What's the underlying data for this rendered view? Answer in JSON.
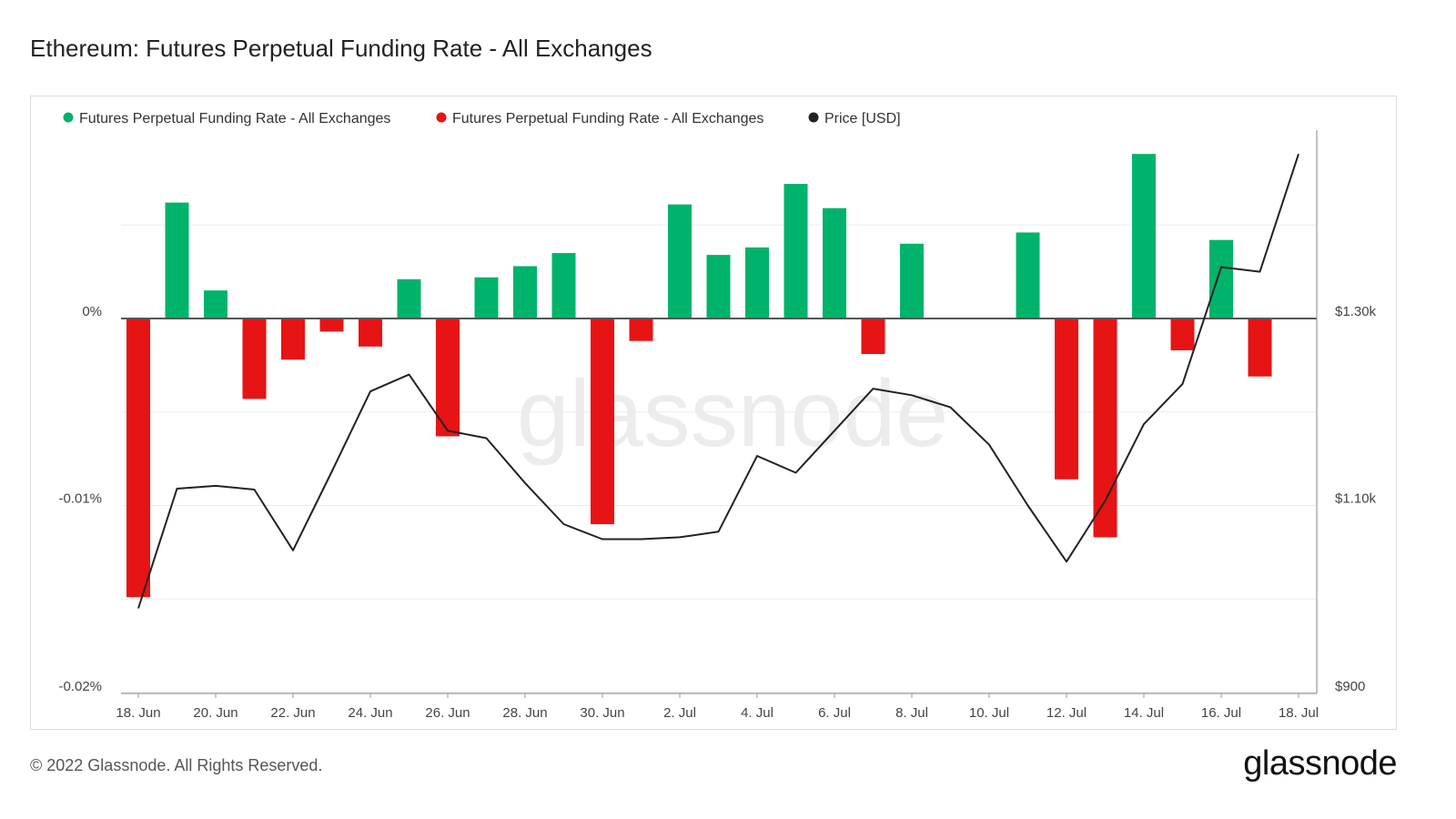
{
  "page": {
    "title": "Ethereum: Futures Perpetual Funding Rate - All Exchanges",
    "copyright": "© 2022 Glassnode. All Rights Reserved.",
    "logo": "glassnode",
    "watermark": "glassnode"
  },
  "chart_data": {
    "type": "bar",
    "legend": [
      {
        "label": "Futures Perpetual Funding Rate - All Exchanges",
        "color": "#00b36b"
      },
      {
        "label": "Futures Perpetual Funding Rate - All Exchanges",
        "color": "#e61414"
      },
      {
        "label": "Price [USD]",
        "color": "#222222"
      }
    ],
    "legend_position": "top-left",
    "x_tick_labels": [
      "18. Jun",
      "20. Jun",
      "22. Jun",
      "24. Jun",
      "26. Jun",
      "28. Jun",
      "30. Jun",
      "2. Jul",
      "4. Jul",
      "6. Jul",
      "8. Jul",
      "10. Jul",
      "12. Jul",
      "14. Jul",
      "16. Jul",
      "18. Jul"
    ],
    "left_axis": {
      "ticks": [
        {
          "value": 0,
          "label": "0%"
        },
        {
          "value": -0.01,
          "label": "-0.01%"
        },
        {
          "value": -0.02,
          "label": "-0.02%"
        }
      ],
      "range": [
        -0.02,
        0.01
      ]
    },
    "right_axis": {
      "ticks": [
        {
          "value": 1300,
          "label": "$1.30k"
        },
        {
          "value": 1100,
          "label": "$1.10k"
        },
        {
          "value": 900,
          "label": "$900"
        }
      ],
      "range": [
        900,
        1500
      ]
    },
    "grid": true,
    "dates": [
      "18. Jun",
      "19. Jun",
      "20. Jun",
      "21. Jun",
      "22. Jun",
      "23. Jun",
      "24. Jun",
      "25. Jun",
      "26. Jun",
      "27. Jun",
      "28. Jun",
      "29. Jun",
      "30. Jun",
      "1. Jul",
      "2. Jul",
      "3. Jul",
      "4. Jul",
      "5. Jul",
      "6. Jul",
      "7. Jul",
      "8. Jul",
      "9. Jul",
      "10. Jul",
      "11. Jul",
      "12. Jul",
      "13. Jul",
      "14. Jul",
      "15. Jul",
      "16. Jul",
      "17. Jul",
      "18. Jul"
    ],
    "series": [
      {
        "name": "Futures Perpetual Funding Rate - All Exchanges",
        "axis": "left",
        "values": [
          -0.0149,
          0.0062,
          0.0015,
          -0.0043,
          -0.0022,
          -0.0007,
          -0.0015,
          0.0021,
          -0.0063,
          0.0022,
          0.0028,
          0.0035,
          -0.011,
          -0.0012,
          0.0061,
          0.0034,
          0.0038,
          0.0072,
          0.0059,
          -0.0019,
          0.004,
          0,
          0,
          0.0046,
          -0.0086,
          -0.0117,
          0.0088,
          -0.0017,
          0.0042,
          -0.0031,
          null
        ]
      },
      {
        "name": "Price [USD]",
        "axis": "right",
        "values": [
          990,
          1118,
          1121,
          1117,
          1052,
          1136,
          1222,
          1240,
          1180,
          1172,
          1124,
          1080,
          1064,
          1064,
          1066,
          1072,
          1153,
          1135,
          1180,
          1225,
          1218,
          1205,
          1165,
          1100,
          1040,
          1105,
          1187,
          1230,
          1355,
          1350,
          1476
        ]
      }
    ]
  }
}
